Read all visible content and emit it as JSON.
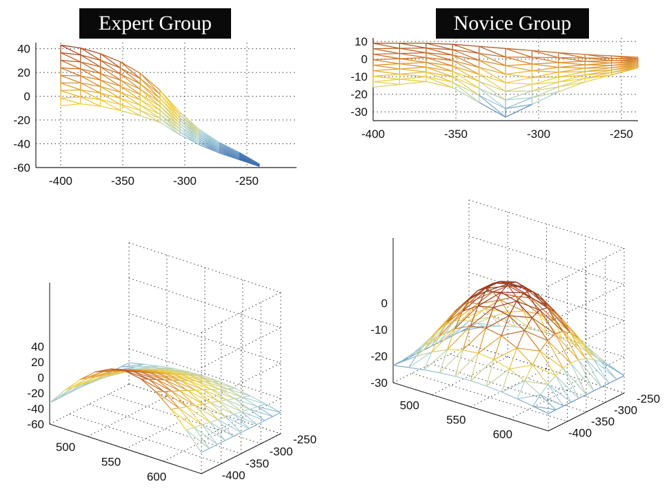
{
  "panels": {
    "expert_title": "Expert Group",
    "novice_title": "Novice Group"
  },
  "colors": {
    "high": "#9a3c1e",
    "upper_mid": "#d27a2c",
    "mid": "#f2cf3c",
    "lower_mid": "#a9d3dc",
    "low": "#2c5aa8",
    "grid": "#333333"
  },
  "chart_data": [
    {
      "type": "mesh-wireframe",
      "view": "side (x-z)",
      "group": "Expert Group",
      "title": "Expert Group",
      "xlim": [
        -420,
        -210
      ],
      "ylim": [
        -60,
        45
      ],
      "xticks": [
        -400,
        -350,
        -300,
        -250
      ],
      "yticks": [
        -60,
        -40,
        -20,
        0,
        20,
        40
      ],
      "grid": true,
      "upper_edge": {
        "x": [
          -400,
          -380,
          -360,
          -340,
          -320,
          -300,
          -280,
          -260,
          -240
        ],
        "z": [
          43,
          40,
          33,
          23,
          5,
          -18,
          -35,
          -45,
          -57
        ]
      },
      "lower_edge": {
        "x": [
          -400,
          -380,
          -360,
          -340,
          -320,
          -300,
          -280,
          -260,
          -240
        ],
        "z": [
          -8,
          -6,
          -10,
          -15,
          -22,
          -35,
          -45,
          -52,
          -59
        ]
      }
    },
    {
      "type": "mesh-wireframe",
      "view": "side (x-z)",
      "group": "Novice Group",
      "title": "Novice Group",
      "xlim": [
        -400,
        -240
      ],
      "ylim": [
        -35,
        12
      ],
      "xticks": [
        -400,
        -350,
        -300,
        -250
      ],
      "yticks": [
        -30,
        -20,
        -10,
        0,
        10
      ],
      "grid": true,
      "upper_edge": {
        "x": [
          -400,
          -360,
          -320,
          -280,
          -240
        ],
        "z": [
          9,
          9,
          6,
          3,
          1
        ]
      },
      "lower_edge": {
        "x": [
          -400,
          -360,
          -320,
          -280,
          -240
        ],
        "z": [
          -16,
          -12,
          -33,
          -15,
          -5
        ]
      }
    },
    {
      "type": "mesh-wireframe",
      "view": "3d",
      "group": "Expert Group",
      "x_ticks": [
        500,
        550,
        600
      ],
      "y_ticks": [
        -250,
        -300,
        -350,
        -400
      ],
      "z_ticks": [
        40,
        20,
        0,
        -20,
        -40,
        -60
      ],
      "grid": true
    },
    {
      "type": "mesh-wireframe",
      "view": "3d",
      "group": "Novice Group",
      "x_ticks": [
        500,
        550,
        600
      ],
      "y_ticks": [
        -250,
        -300,
        -350,
        -400
      ],
      "z_ticks": [
        0,
        -10,
        -20,
        -30
      ],
      "grid": true
    }
  ]
}
